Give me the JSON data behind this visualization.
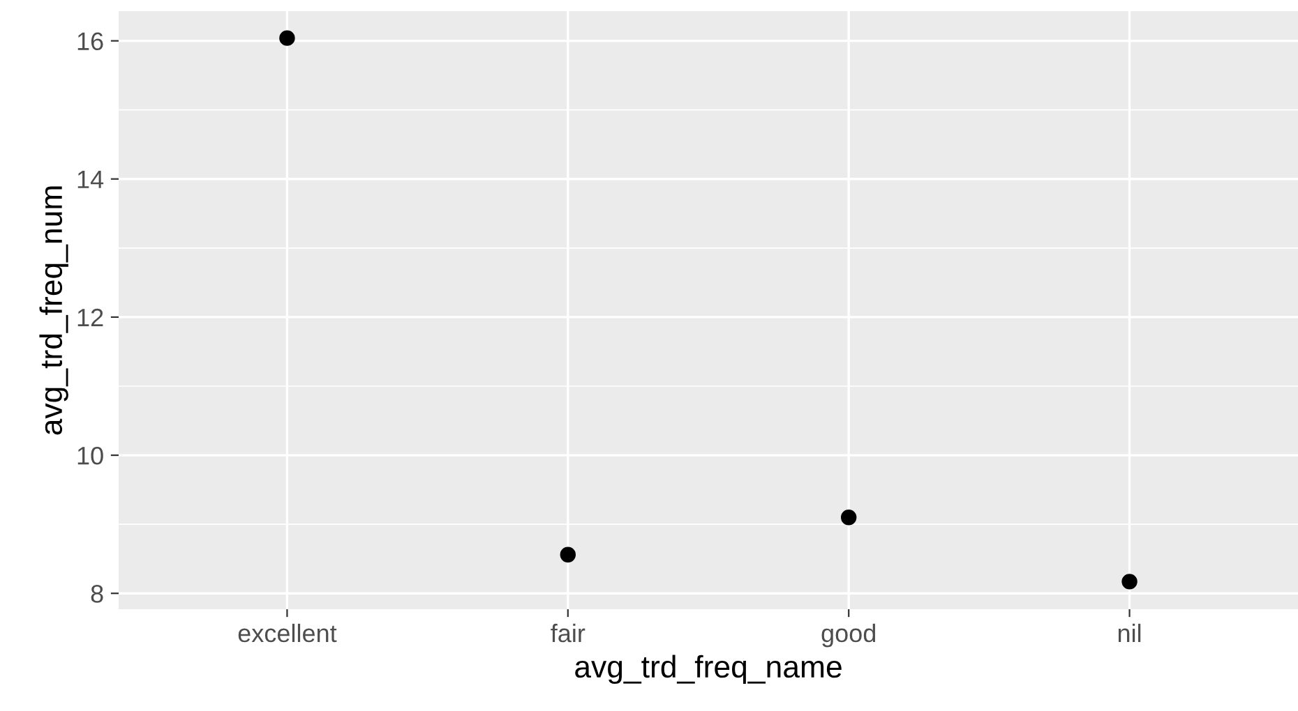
{
  "chart_data": {
    "type": "scatter",
    "xlabel": "avg_trd_freq_name",
    "ylabel": "avg_trd_freq_num",
    "categories": [
      "excellent",
      "fair",
      "good",
      "nil"
    ],
    "values": [
      16.04,
      8.56,
      9.1,
      8.17
    ],
    "color": "#000000",
    "marker": "circle",
    "ylim": [
      7.77,
      16.43
    ],
    "yticks": [
      8,
      10,
      12,
      14,
      16
    ],
    "grid": true
  }
}
